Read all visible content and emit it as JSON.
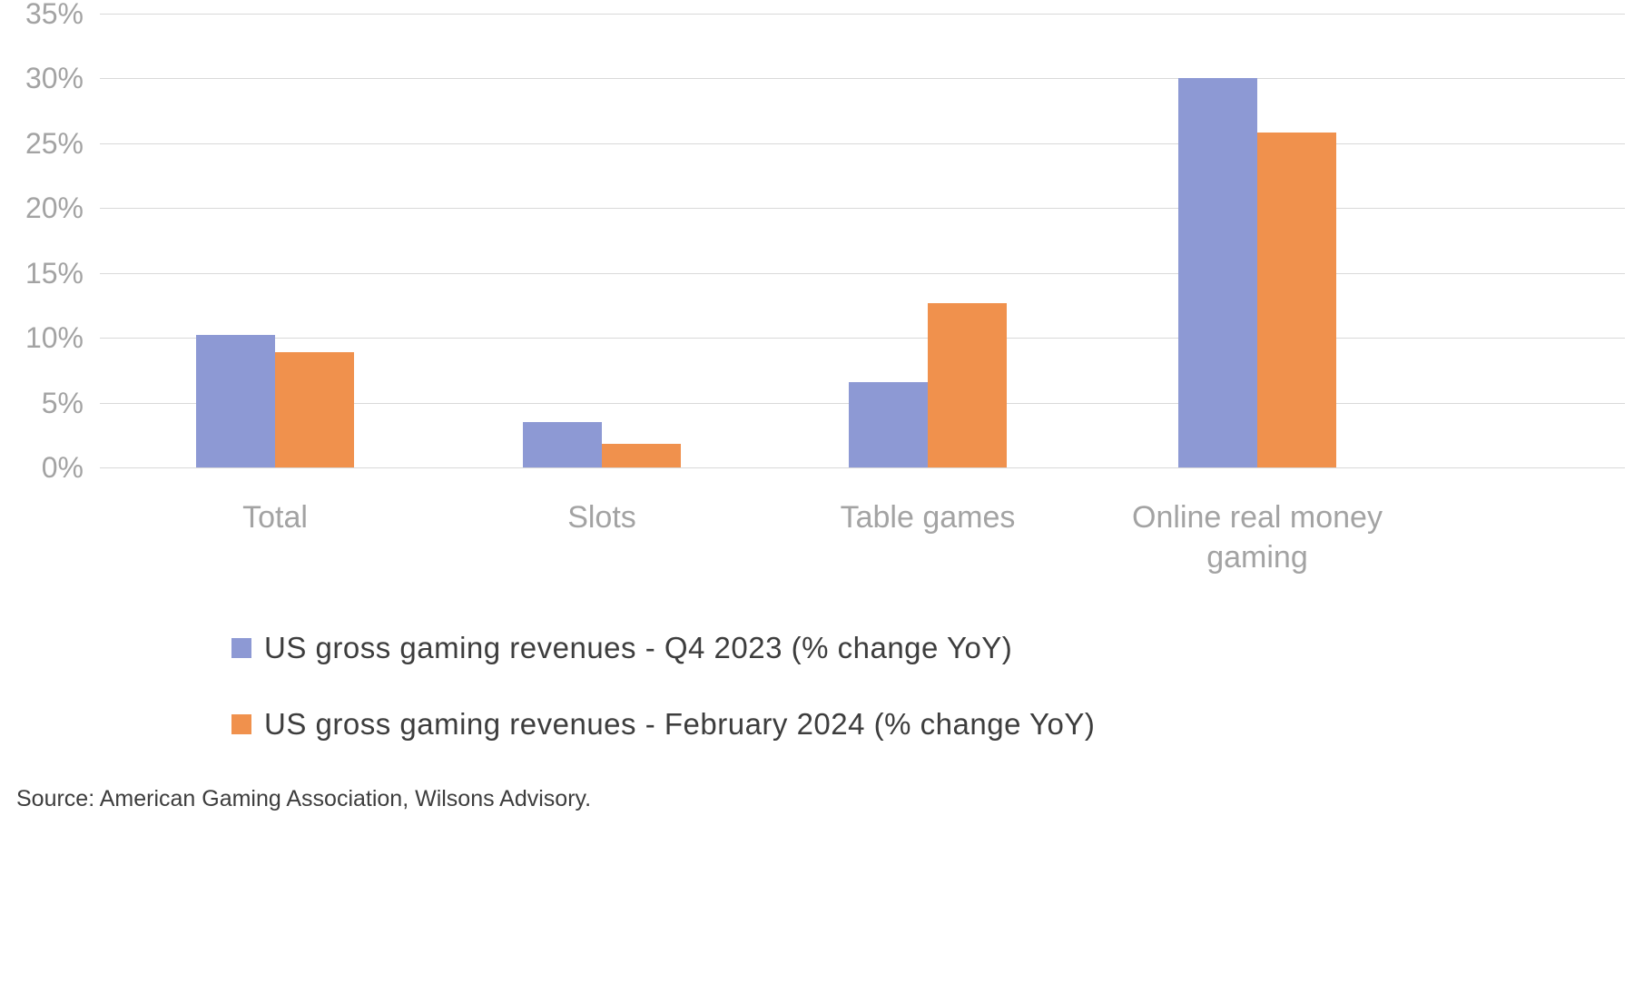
{
  "chart_data": {
    "type": "bar",
    "categories": [
      "Total",
      "Slots",
      "Table games",
      "Online real money gaming"
    ],
    "series": [
      {
        "name": "US gross gaming revenues - Q4 2023 (% change YoY)",
        "color": "#8d99d4",
        "values": [
          10.2,
          3.5,
          6.6,
          30.0
        ]
      },
      {
        "name": "US gross gaming revenues - February 2024 (% change YoY)",
        "color": "#f0914d",
        "values": [
          8.9,
          1.8,
          12.7,
          25.8
        ]
      }
    ],
    "xlabel": "",
    "ylabel": "",
    "ylim": [
      0,
      35
    ],
    "ytick_step": 5,
    "ytick_labels": [
      "0%",
      "5%",
      "10%",
      "15%",
      "20%",
      "25%",
      "30%",
      "35%"
    ],
    "grid": true,
    "legend_position": "bottom",
    "grid_color": "#d9d9d9",
    "axis_label_color": "#a3a3a3"
  },
  "source": "Source: American Gaming Association, Wilsons Advisory."
}
